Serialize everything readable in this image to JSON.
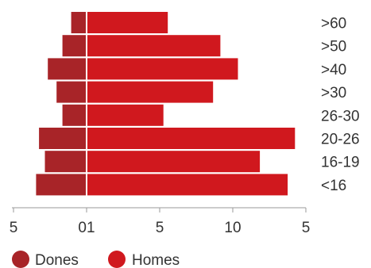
{
  "chart_data": {
    "type": "bar",
    "orientation": "horizontal",
    "categories": [
      ">60",
      ">50",
      ">40",
      ">30",
      "26-30",
      "20-26",
      "16-19",
      "<16"
    ],
    "series": [
      {
        "name": "Dones",
        "color": "#a82428",
        "values": [
          1.0,
          1.6,
          2.6,
          2.0,
          1.6,
          3.2,
          2.8,
          3.4
        ]
      },
      {
        "name": "Homes",
        "color": "#d0181e",
        "values": [
          5.5,
          9.1,
          10.3,
          8.6,
          5.2,
          14.2,
          11.8,
          13.7
        ]
      }
    ],
    "x_tick_labels": [
      "5",
      "01",
      "5",
      "10",
      "5"
    ],
    "grid": false,
    "legend_position": "bottom-left",
    "title": "",
    "xlabel": "",
    "ylabel": ""
  }
}
